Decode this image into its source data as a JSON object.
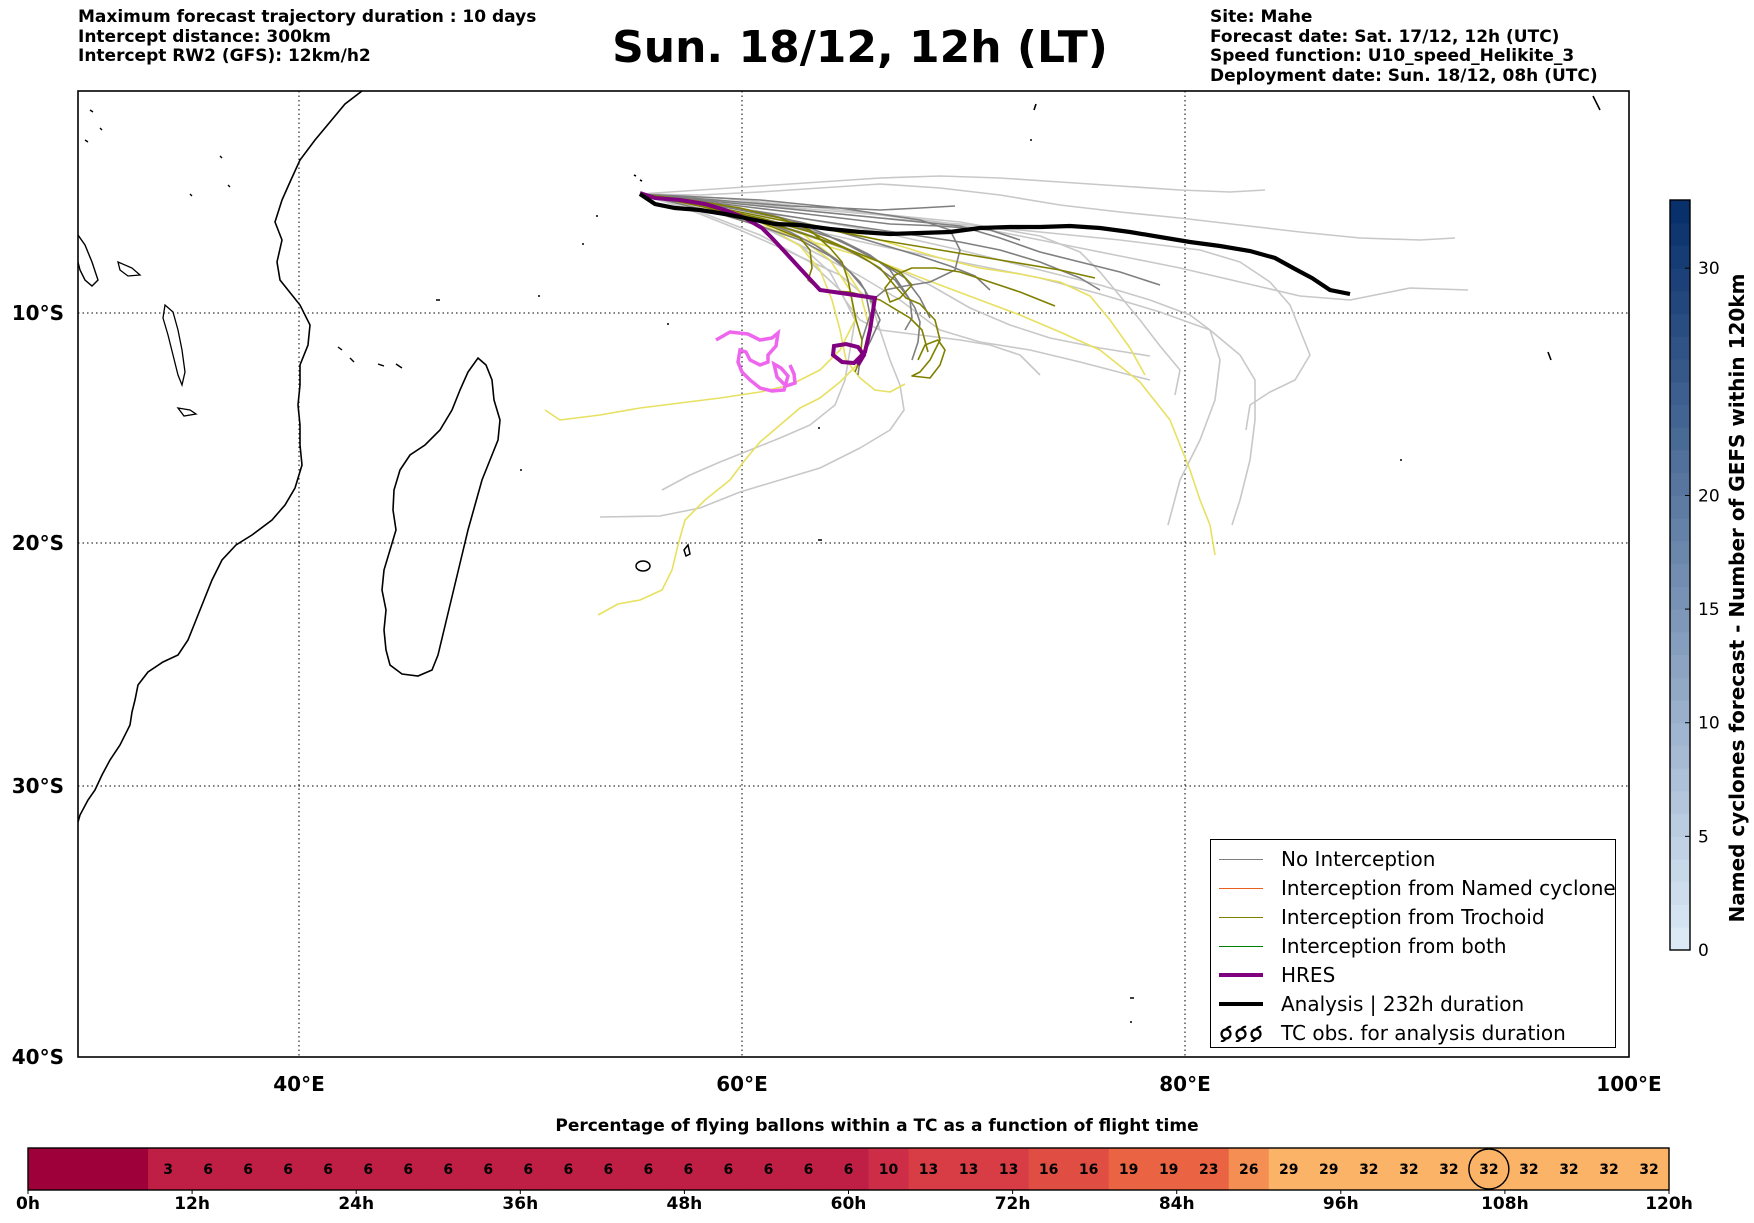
{
  "header": {
    "left_lines": [
      "Maximum forecast trajectory duration : 10 days",
      "Intercept distance: 300km",
      "Intercept RW2 (GFS):  12km/h2"
    ],
    "right_lines": [
      "Site: Mahe",
      "Forecast date: Sat. 17/12, 12h (UTC)",
      "Speed function: U10_speed_Helikite_3",
      "Deployment date: Sun. 18/12, 08h (UTC)"
    ],
    "title": "Sun. 18/12, 12h (LT)"
  },
  "map": {
    "lon_range": [
      30,
      100
    ],
    "lat_range": [
      -40,
      0
    ],
    "lon_ticks": [
      "40°E",
      "60°E",
      "80°E",
      "100°E"
    ],
    "lat_ticks": [
      "10°S",
      "20°S",
      "30°S",
      "40°S"
    ],
    "grid": "dotted",
    "colors": {
      "no_interception": "#7f7f7f",
      "no_interception_light": "#c8c8c8",
      "named_cyclone": "#e8601c",
      "trochoid": "#808000",
      "trochoid_light": "#e8e060",
      "both": "#008000",
      "hres": "#800080",
      "hres_light": "#ee66ee",
      "analysis": "#000000"
    }
  },
  "legend": {
    "placement": "lower-right",
    "items": [
      {
        "label": "No Interception",
        "color": "#7f7f7f",
        "style": "thin"
      },
      {
        "label": "Interception from Named cyclone",
        "color": "#e8601c",
        "style": "thin"
      },
      {
        "label": "Interception from Trochoid",
        "color": "#808000",
        "style": "thin"
      },
      {
        "label": "Interception from both",
        "color": "#008000",
        "style": "thin"
      },
      {
        "label": "HRES",
        "color": "#800080",
        "style": "thick"
      },
      {
        "label": "Analysis | 232h duration",
        "color": "#000000",
        "style": "thick"
      },
      {
        "label": "TC obs. for analysis duration",
        "color": "#000000",
        "style": "cyclone-symbols"
      }
    ]
  },
  "colorbar": {
    "label": "Named cyclones forecast - Number of GEFS within 120km",
    "range": [
      0,
      33
    ],
    "ticks": [
      "0",
      "5",
      "10",
      "15",
      "20",
      "30"
    ],
    "tick_values": [
      0,
      5,
      10,
      15,
      20,
      30
    ],
    "color_low": "#dbe9f6",
    "color_high": "#08306b"
  },
  "strip": {
    "title": "Percentage of flying ballons within a TC as a function of flight time",
    "hour_labels": [
      "0h",
      "12h",
      "24h",
      "36h",
      "48h",
      "60h",
      "72h",
      "84h",
      "96h",
      "108h",
      "120h"
    ],
    "cells": [
      "",
      "",
      "",
      "3",
      "6",
      "6",
      "6",
      "6",
      "6",
      "6",
      "6",
      "6",
      "6",
      "6",
      "6",
      "6",
      "6",
      "6",
      "6",
      "6",
      "6",
      "10",
      "13",
      "13",
      "13",
      "16",
      "16",
      "19",
      "19",
      "23",
      "26",
      "29",
      "29",
      "32",
      "32",
      "32",
      "32",
      "32",
      "32",
      "32",
      "32"
    ],
    "circled_index": 36
  }
}
